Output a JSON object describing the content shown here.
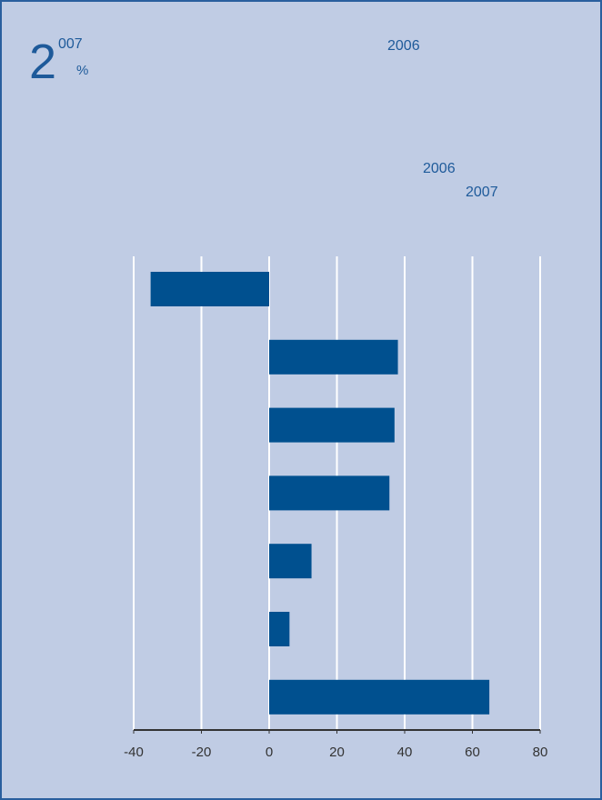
{
  "chart_data": {
    "type": "hbar",
    "title_lead": "2",
    "title_rest": "007",
    "unit": "%",
    "subtitle": "2006",
    "annotations": [
      "2006",
      "2007"
    ],
    "categories": [
      null,
      null,
      null,
      null,
      null,
      null,
      null
    ],
    "values": [
      -35,
      38,
      37,
      35.5,
      12.5,
      6,
      65
    ],
    "color": "#00508f",
    "xlim": [
      -40,
      80
    ],
    "xticks": [
      -40,
      -20,
      0,
      20,
      40,
      60,
      80
    ],
    "grid": true
  }
}
